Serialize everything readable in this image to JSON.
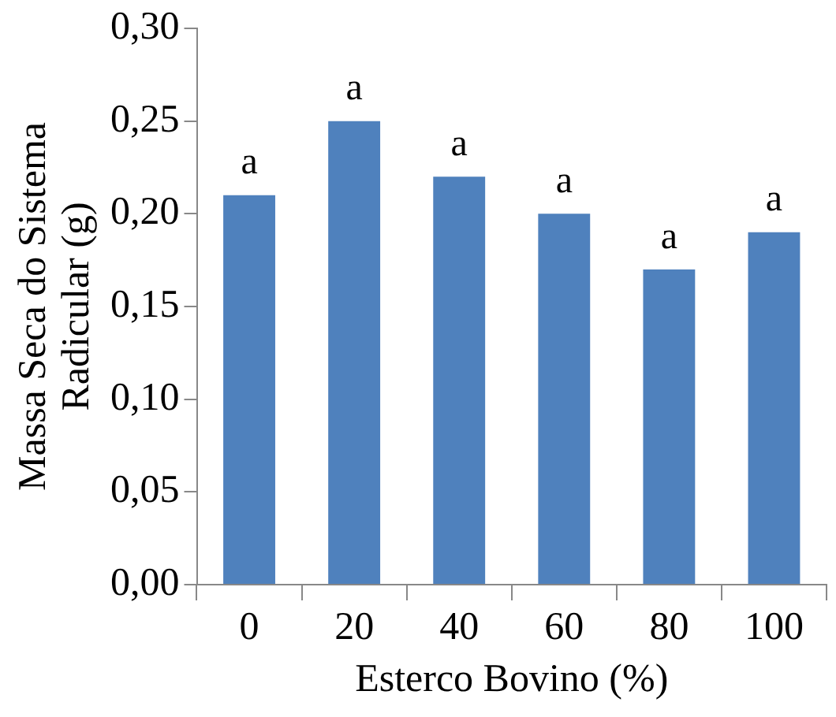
{
  "chart_data": {
    "type": "bar",
    "xlabel": "Esterco Bovino (%)",
    "ylabel": "Massa Seca do Sistema Radicular (g)",
    "categories": [
      "0",
      "20",
      "40",
      "60",
      "80",
      "100"
    ],
    "values": [
      0.21,
      0.25,
      0.22,
      0.2,
      0.17,
      0.19
    ],
    "color": "#4f81bd",
    "ylim": [
      0,
      0.3
    ],
    "yticks": [
      {
        "value": 0,
        "label": "0,00"
      },
      {
        "value": 0.05,
        "label": "0,05"
      },
      {
        "value": 0.1,
        "label": "0,10"
      },
      {
        "value": 0.15,
        "label": "0,15"
      },
      {
        "value": 0.2,
        "label": "0,20"
      },
      {
        "value": 0.25,
        "label": "0,25"
      },
      {
        "value": 0.3,
        "label": "0,30"
      }
    ],
    "grid": false,
    "legend": false,
    "annotations": [
      {
        "text": "a",
        "x": "0",
        "y": 0.21
      },
      {
        "text": "a",
        "x": "20",
        "y": 0.25
      },
      {
        "text": "a",
        "x": "40",
        "y": 0.22
      },
      {
        "text": "a",
        "x": "60",
        "y": 0.2
      },
      {
        "text": "a",
        "x": "80",
        "y": 0.17
      },
      {
        "text": "a",
        "x": "100",
        "y": 0.19
      }
    ]
  }
}
